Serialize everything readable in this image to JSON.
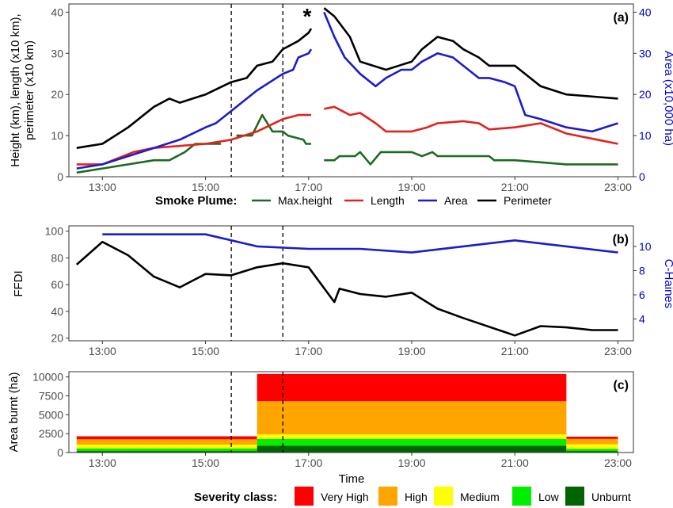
{
  "colors": {
    "max_height": "#1e6b1e",
    "length": "#e0231e",
    "area": "#1c1ccc",
    "perimeter": "#000000",
    "ffdi": "#000000",
    "chaines": "#1c1ccc",
    "very_high": "#ff0000",
    "high": "#ffa500",
    "medium": "#ffff00",
    "low": "#00ee00",
    "unburnt": "#006400"
  },
  "asterisk": "*",
  "x_axis": {
    "ticks": [
      13,
      15,
      17,
      19,
      21,
      23
    ],
    "tick_labels": [
      "13:00",
      "15:00",
      "17:00",
      "19:00",
      "21:00",
      "23:00"
    ],
    "label": "Time"
  },
  "dashed_lines": [
    15.5,
    16.5
  ],
  "chart_data": [
    {
      "id": "a",
      "tag": "(a)",
      "type": "line",
      "ylabel_left": [
        "Height (km), length (x10 km),",
        "perimeter (x10 km)"
      ],
      "ylabel_right": "Area (x10,000 ha)",
      "ylim_left": [
        0,
        42
      ],
      "yticks_left": [
        0,
        10,
        20,
        30,
        40
      ],
      "ytick_labels_left": [
        "0",
        "10",
        "20",
        "30",
        "40"
      ],
      "ylim_right": [
        0,
        42
      ],
      "yticks_right": [
        0,
        10,
        20,
        30,
        40
      ],
      "ytick_labels_right": [
        "0",
        "10",
        "20",
        "30",
        "40"
      ],
      "legend_title": "Smoke Plume:",
      "legend_position": "bottom",
      "series": [
        {
          "key": "max_height",
          "name": "Max.height",
          "segments": [
            [
              [
                12.5,
                1
              ],
              [
                13,
                2
              ],
              [
                14,
                4
              ],
              [
                14.3,
                4
              ],
              [
                14.6,
                6
              ],
              [
                14.8,
                8
              ],
              [
                15.3,
                8
              ]
            ],
            [
              [
                15.6,
                10
              ],
              [
                15.9,
                10
              ],
              [
                16.1,
                15
              ],
              [
                16.3,
                11
              ],
              [
                16.5,
                11
              ],
              [
                16.6,
                10
              ],
              [
                16.9,
                9
              ],
              [
                16.95,
                8
              ],
              [
                17.05,
                8
              ]
            ],
            [
              [
                17.3,
                4
              ],
              [
                17.5,
                4
              ],
              [
                17.6,
                5
              ],
              [
                17.9,
                5
              ],
              [
                18,
                6
              ],
              [
                18.2,
                3
              ],
              [
                18.4,
                6
              ],
              [
                19,
                6
              ],
              [
                19.2,
                5
              ],
              [
                19.4,
                6
              ],
              [
                19.5,
                5
              ],
              [
                20,
                5
              ],
              [
                20.5,
                5
              ],
              [
                20.6,
                4
              ],
              [
                21,
                4
              ],
              [
                22,
                3
              ],
              [
                23,
                3
              ]
            ]
          ]
        },
        {
          "key": "length",
          "name": "Length",
          "segments": [
            [
              [
                12.5,
                3
              ],
              [
                13,
                3
              ],
              [
                13.6,
                6
              ],
              [
                14,
                7
              ],
              [
                15,
                8
              ],
              [
                15.5,
                9
              ],
              [
                16,
                11
              ],
              [
                16.5,
                14
              ],
              [
                16.8,
                15
              ],
              [
                17.05,
                15
              ]
            ],
            [
              [
                17.3,
                16.5
              ],
              [
                17.5,
                17
              ],
              [
                17.8,
                15
              ],
              [
                18,
                15.5
              ],
              [
                18.3,
                13
              ],
              [
                18.5,
                11
              ],
              [
                19,
                11
              ],
              [
                19.3,
                12
              ],
              [
                19.5,
                13
              ],
              [
                20,
                13.5
              ],
              [
                20.3,
                13
              ],
              [
                20.5,
                11.5
              ],
              [
                21,
                12
              ],
              [
                21.5,
                13
              ],
              [
                21.7,
                12
              ],
              [
                22,
                10.5
              ],
              [
                23,
                8
              ]
            ]
          ]
        },
        {
          "key": "area",
          "name": "Area",
          "segments": [
            [
              [
                12.5,
                2
              ],
              [
                13,
                3
              ],
              [
                14,
                7
              ],
              [
                14.5,
                9
              ],
              [
                15,
                12
              ],
              [
                15.2,
                13
              ],
              [
                15.5,
                16
              ],
              [
                16,
                21
              ],
              [
                16.5,
                25
              ],
              [
                16.7,
                26
              ],
              [
                16.8,
                29
              ],
              [
                17,
                30
              ],
              [
                17.05,
                31
              ]
            ],
            [
              [
                17.3,
                40
              ],
              [
                17.5,
                34
              ],
              [
                17.7,
                29
              ],
              [
                18,
                25
              ],
              [
                18.3,
                22
              ],
              [
                18.5,
                24
              ],
              [
                18.8,
                26
              ],
              [
                19,
                26
              ],
              [
                19.2,
                28
              ],
              [
                19.5,
                30
              ],
              [
                19.8,
                29
              ],
              [
                20,
                27
              ],
              [
                20.3,
                24
              ],
              [
                20.5,
                24
              ],
              [
                20.8,
                23
              ],
              [
                21,
                22
              ],
              [
                21.2,
                15
              ],
              [
                21.5,
                14
              ],
              [
                22,
                12
              ],
              [
                22.5,
                11
              ],
              [
                23,
                13
              ]
            ]
          ]
        },
        {
          "key": "perimeter",
          "name": "Perimeter",
          "segments": [
            [
              [
                12.5,
                7
              ],
              [
                13,
                8
              ],
              [
                13.5,
                12
              ],
              [
                14,
                17
              ],
              [
                14.3,
                19
              ],
              [
                14.5,
                18
              ],
              [
                15,
                20
              ],
              [
                15.5,
                23
              ],
              [
                15.8,
                24
              ],
              [
                16,
                27
              ],
              [
                16.3,
                28
              ],
              [
                16.5,
                31
              ],
              [
                16.8,
                33
              ],
              [
                17,
                35
              ],
              [
                17.05,
                36
              ]
            ],
            [
              [
                17.3,
                41
              ],
              [
                17.5,
                39
              ],
              [
                17.8,
                34
              ],
              [
                18,
                28
              ],
              [
                18.5,
                26
              ],
              [
                19,
                28
              ],
              [
                19.2,
                31
              ],
              [
                19.5,
                34
              ],
              [
                19.8,
                33
              ],
              [
                20,
                31
              ],
              [
                20.3,
                29
              ],
              [
                20.5,
                27
              ],
              [
                21,
                27
              ],
              [
                21.5,
                22
              ],
              [
                22,
                20
              ],
              [
                23,
                19
              ]
            ]
          ]
        }
      ]
    },
    {
      "id": "b",
      "tag": "(b)",
      "type": "line",
      "ylabel_left": "FFDI",
      "ylabel_right": "C-Haines",
      "ylim_left": [
        18,
        104
      ],
      "yticks_left": [
        20,
        40,
        60,
        80,
        100
      ],
      "ytick_labels_left": [
        "20",
        "40",
        "60",
        "80",
        "100"
      ],
      "ylim_right": [
        2.2,
        11.7
      ],
      "yticks_right": [
        4,
        6,
        8,
        10
      ],
      "ytick_labels_right": [
        "4",
        "6",
        "8",
        "10"
      ],
      "series": [
        {
          "key": "ffdi",
          "name": "FFDI",
          "axis": "left",
          "points": [
            [
              12.5,
              75
            ],
            [
              13,
              92
            ],
            [
              13.5,
              82
            ],
            [
              14,
              66
            ],
            [
              14.5,
              58
            ],
            [
              15,
              68
            ],
            [
              15.5,
              67
            ],
            [
              16,
              73
            ],
            [
              16.5,
              76
            ],
            [
              17,
              73
            ],
            [
              17.5,
              47
            ],
            [
              17.6,
              57
            ],
            [
              18,
              53
            ],
            [
              18.5,
              51
            ],
            [
              19,
              54
            ],
            [
              19.5,
              42
            ],
            [
              20,
              35
            ],
            [
              21,
              22
            ],
            [
              21.5,
              29
            ],
            [
              22,
              28
            ],
            [
              22.5,
              26
            ],
            [
              23,
              26
            ]
          ]
        },
        {
          "key": "chaines",
          "name": "C-Haines",
          "axis": "right",
          "points": [
            [
              13,
              11
            ],
            [
              14,
              11
            ],
            [
              15,
              11
            ],
            [
              16,
              10
            ],
            [
              17,
              9.8
            ],
            [
              18,
              9.8
            ],
            [
              19,
              9.5
            ],
            [
              20,
              10
            ],
            [
              21,
              10.5
            ],
            [
              22,
              10
            ],
            [
              23,
              9.5
            ]
          ]
        }
      ]
    },
    {
      "id": "c",
      "tag": "(c)",
      "type": "bar",
      "ylabel": "Area burnt (ha)",
      "ylim": [
        0,
        10700
      ],
      "yticks": [
        0,
        2500,
        5000,
        7500,
        10000
      ],
      "ytick_labels": [
        "0",
        "2500",
        "5000",
        "7500",
        "10000"
      ],
      "legend_title": "Severity class:",
      "legend_position": "bottom",
      "classes": [
        {
          "key": "unburnt",
          "name": "Unburnt"
        },
        {
          "key": "low",
          "name": "Low"
        },
        {
          "key": "medium",
          "name": "Medium"
        },
        {
          "key": "high",
          "name": "High"
        },
        {
          "key": "very_high",
          "name": "Very High"
        }
      ],
      "bars": [
        {
          "x_start": 12.5,
          "x_end": 16,
          "stack": {
            "unburnt": 200,
            "low": 350,
            "medium": 500,
            "high": 700,
            "very_high": 400
          }
        },
        {
          "x_start": 16,
          "x_end": 22,
          "stack": {
            "unburnt": 900,
            "low": 900,
            "medium": 600,
            "high": 4400,
            "very_high": 3600
          }
        },
        {
          "x_start": 22,
          "x_end": 23,
          "stack": {
            "unburnt": 200,
            "low": 300,
            "medium": 600,
            "high": 700,
            "very_high": 300
          }
        }
      ]
    }
  ]
}
